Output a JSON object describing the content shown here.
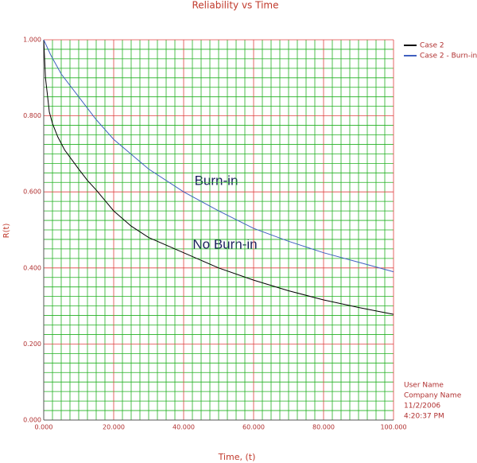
{
  "chart_data": {
    "type": "line",
    "title": "Reliability vs Time",
    "xlabel": "Time, (t)",
    "ylabel": "R(t)",
    "xlim": [
      0,
      100
    ],
    "ylim": [
      0,
      1
    ],
    "xticks": [
      {
        "value": 0,
        "label": "0.000"
      },
      {
        "value": 20,
        "label": "20.000"
      },
      {
        "value": 40,
        "label": "40.000"
      },
      {
        "value": 60,
        "label": "60.000"
      },
      {
        "value": 80,
        "label": "80.000"
      },
      {
        "value": 100,
        "label": "100.000"
      }
    ],
    "yticks": [
      {
        "value": 0,
        "label": "0.000"
      },
      {
        "value": 0.2,
        "label": "0.200"
      },
      {
        "value": 0.4,
        "label": "0.400"
      },
      {
        "value": 0.6,
        "label": "0.600"
      },
      {
        "value": 0.8,
        "label": "0.800"
      },
      {
        "value": 1,
        "label": "1.000"
      }
    ],
    "grid": true,
    "major_grid_color": "#e04040",
    "minor_grid_color": "#22b022",
    "minor_grid_per_major": 8,
    "series": [
      {
        "name": "Case 2",
        "color": "#000000",
        "x": [
          0,
          0.5,
          1,
          1.6,
          2.5,
          4,
          6,
          8,
          10,
          12.5,
          15,
          20,
          25,
          30,
          40,
          50,
          60,
          70,
          80,
          90,
          100
        ],
        "values": [
          1.0,
          0.9,
          0.86,
          0.81,
          0.78,
          0.745,
          0.71,
          0.685,
          0.66,
          0.63,
          0.605,
          0.55,
          0.51,
          0.48,
          0.44,
          0.4,
          0.368,
          0.34,
          0.316,
          0.296,
          0.278
        ]
      },
      {
        "name": "Case 2 - Burn-in",
        "color": "#4060c0",
        "x": [
          0,
          2,
          5,
          10,
          15,
          20,
          30,
          40,
          50,
          60,
          70,
          80,
          90,
          100
        ],
        "values": [
          1.0,
          0.96,
          0.91,
          0.85,
          0.79,
          0.738,
          0.66,
          0.6,
          0.55,
          0.504,
          0.47,
          0.44,
          0.415,
          0.39
        ]
      }
    ],
    "annotations": [
      {
        "text": "Burn-in"
      },
      {
        "text": "No Burn-in"
      }
    ],
    "footer": [
      "User Name",
      "Company Name",
      "11/2/2006",
      "4:20:37 PM"
    ]
  }
}
